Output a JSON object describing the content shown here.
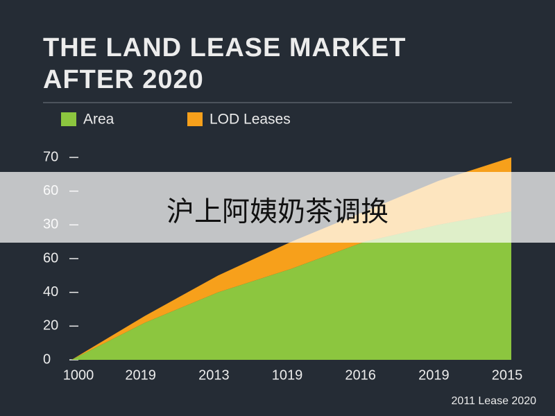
{
  "chart_data": {
    "type": "stacked_area",
    "title": "THE LAND LEASE MARKET AFTER 2020",
    "categories": [
      "1000",
      "2019",
      "2013",
      "1019",
      "2016",
      "2019",
      "2015"
    ],
    "series": [
      {
        "name": "Area",
        "color": "#8cc63f",
        "values": [
          0,
          11,
          20,
          27,
          35,
          40,
          44
        ]
      },
      {
        "name": "LOD Leases",
        "color": "#f7a01b",
        "values": [
          0,
          2,
          5,
          8,
          9,
          13,
          16
        ]
      }
    ],
    "ylim": [
      0,
      60
    ],
    "yticks": [
      0,
      {
        "value": 10,
        "label": "20"
      },
      {
        "value": 20,
        "label": "40"
      },
      {
        "value": 30,
        "label": "60"
      },
      {
        "value": 40,
        "label": "30"
      },
      {
        "value": 50,
        "label": "60"
      },
      {
        "value": 60,
        "label": "70"
      }
    ],
    "annotation": "2011 Lease 2020",
    "overlay_text": "沪上阿姨奶茶调换"
  }
}
